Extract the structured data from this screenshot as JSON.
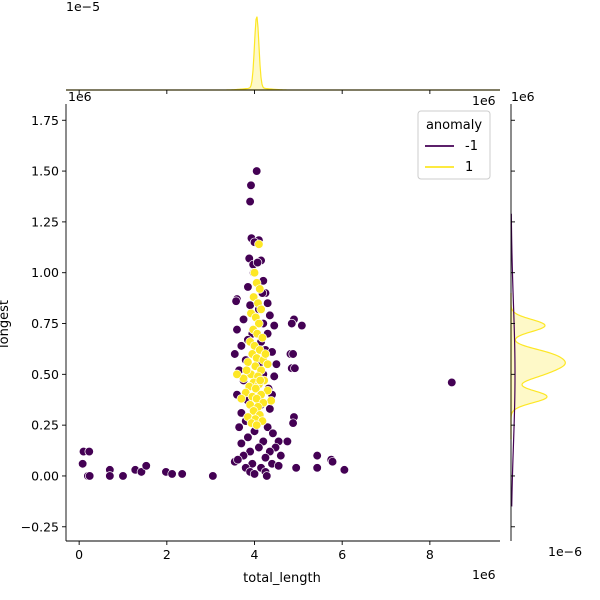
{
  "chart_data": {
    "type": "scatter",
    "joint": {
      "xlabel": "total_length",
      "ylabel": "longest",
      "x_offset_text": "1e6",
      "y_offset_text": "1e6",
      "xlim": [
        -0.3,
        9.6
      ],
      "ylim": [
        -0.32,
        1.83
      ],
      "xticks": [
        0,
        2,
        4,
        6,
        8
      ],
      "xtick_labels": [
        "0",
        "2",
        "4",
        "6",
        "8"
      ],
      "yticks": [
        -0.25,
        0.0,
        0.25,
        0.5,
        0.75,
        1.0,
        1.25,
        1.5,
        1.75
      ],
      "ytick_labels": [
        "−0.25",
        "0.00",
        "0.25",
        "0.50",
        "0.75",
        "1.00",
        "1.25",
        "1.50",
        "1.75"
      ],
      "grid": false
    },
    "legend": {
      "title": "anomaly",
      "placement": "top-right",
      "entries": [
        {
          "label": "-1",
          "color": "#440154"
        },
        {
          "label": "1",
          "color": "#fde725"
        }
      ]
    },
    "top_marginal": {
      "offset_text": "1e−5",
      "peak_x": 4.05
    },
    "right_marginal": {
      "offset_text_top": "1e6",
      "offset_text_bottom": "1e−6"
    },
    "series": [
      {
        "name": "-1",
        "color": "#440154",
        "points": [
          [
            0.1,
            0.12
          ],
          [
            0.23,
            0.12
          ],
          [
            0.08,
            0.06
          ],
          [
            0.2,
            0.0
          ],
          [
            0.24,
            0.0
          ],
          [
            0.7,
            0.03
          ],
          [
            0.7,
            0.0
          ],
          [
            1.0,
            0.0
          ],
          [
            1.28,
            0.03
          ],
          [
            1.42,
            0.02
          ],
          [
            1.53,
            0.05
          ],
          [
            1.98,
            0.02
          ],
          [
            2.12,
            0.01
          ],
          [
            2.35,
            0.01
          ],
          [
            3.05,
            0.0
          ],
          [
            3.55,
            0.07
          ],
          [
            4.05,
            1.5
          ],
          [
            3.92,
            1.43
          ],
          [
            3.9,
            1.35
          ],
          [
            3.93,
            1.17
          ],
          [
            4.1,
            1.16
          ],
          [
            4.0,
            1.15
          ],
          [
            3.88,
            1.07
          ],
          [
            4.15,
            1.06
          ],
          [
            3.97,
            1.04
          ],
          [
            4.07,
            1.05
          ],
          [
            3.98,
            1.0
          ],
          [
            4.2,
            0.96
          ],
          [
            3.85,
            0.93
          ],
          [
            4.25,
            0.9
          ],
          [
            3.6,
            0.87
          ],
          [
            3.58,
            0.86
          ],
          [
            4.3,
            0.85
          ],
          [
            3.9,
            0.84
          ],
          [
            4.1,
            0.82
          ],
          [
            4.35,
            0.79
          ],
          [
            3.75,
            0.77
          ],
          [
            4.2,
            0.75
          ],
          [
            4.45,
            0.74
          ],
          [
            4.9,
            0.77
          ],
          [
            4.85,
            0.75
          ],
          [
            5.08,
            0.74
          ],
          [
            3.6,
            0.72
          ],
          [
            3.95,
            0.7
          ],
          [
            4.3,
            0.7
          ],
          [
            3.85,
            0.67
          ],
          [
            4.15,
            0.66
          ],
          [
            3.7,
            0.64
          ],
          [
            4.25,
            0.62
          ],
          [
            4.4,
            0.61
          ],
          [
            4.82,
            0.6
          ],
          [
            4.88,
            0.6
          ],
          [
            3.55,
            0.6
          ],
          [
            3.8,
            0.57
          ],
          [
            4.5,
            0.55
          ],
          [
            4.1,
            0.55
          ],
          [
            4.85,
            0.53
          ],
          [
            4.92,
            0.53
          ],
          [
            3.65,
            0.52
          ],
          [
            4.2,
            0.5
          ],
          [
            4.45,
            0.49
          ],
          [
            3.75,
            0.47
          ],
          [
            4.05,
            0.45
          ],
          [
            4.32,
            0.43
          ],
          [
            3.6,
            0.4
          ],
          [
            4.4,
            0.4
          ],
          [
            3.85,
            0.37
          ],
          [
            4.15,
            0.35
          ],
          [
            4.35,
            0.33
          ],
          [
            3.7,
            0.31
          ],
          [
            4.1,
            0.29
          ],
          [
            4.9,
            0.29
          ],
          [
            4.88,
            0.26
          ],
          [
            3.8,
            0.27
          ],
          [
            4.3,
            0.24
          ],
          [
            3.65,
            0.24
          ],
          [
            4.0,
            0.22
          ],
          [
            4.42,
            0.21
          ],
          [
            4.55,
            0.17
          ],
          [
            3.85,
            0.19
          ],
          [
            4.2,
            0.17
          ],
          [
            4.75,
            0.17
          ],
          [
            3.7,
            0.16
          ],
          [
            4.1,
            0.14
          ],
          [
            4.48,
            0.14
          ],
          [
            3.9,
            0.12
          ],
          [
            4.35,
            0.12
          ],
          [
            3.75,
            0.1
          ],
          [
            4.25,
            0.09
          ],
          [
            4.6,
            0.1
          ],
          [
            5.43,
            0.1
          ],
          [
            5.75,
            0.08
          ],
          [
            5.78,
            0.07
          ],
          [
            3.62,
            0.08
          ],
          [
            3.95,
            0.06
          ],
          [
            4.4,
            0.06
          ],
          [
            3.8,
            0.04
          ],
          [
            4.15,
            0.04
          ],
          [
            4.55,
            0.05
          ],
          [
            4.95,
            0.04
          ],
          [
            5.43,
            0.04
          ],
          [
            6.05,
            0.03
          ],
          [
            3.9,
            0.02
          ],
          [
            4.25,
            0.02
          ],
          [
            4.0,
            0.01
          ],
          [
            4.28,
            0.0
          ],
          [
            8.5,
            0.46
          ],
          [
            4.05,
            0.58
          ],
          [
            3.98,
            0.32
          ],
          [
            4.18,
            0.9
          ]
        ]
      },
      {
        "name": "1",
        "color": "#fde725",
        "points": [
          [
            4.1,
            1.14
          ],
          [
            4.0,
            1.0
          ],
          [
            4.05,
            0.95
          ],
          [
            4.12,
            0.92
          ],
          [
            3.98,
            0.88
          ],
          [
            4.08,
            0.85
          ],
          [
            4.15,
            0.82
          ],
          [
            3.92,
            0.8
          ],
          [
            4.03,
            0.78
          ],
          [
            4.1,
            0.75
          ],
          [
            3.97,
            0.72
          ],
          [
            4.06,
            0.7
          ],
          [
            4.18,
            0.68
          ],
          [
            3.9,
            0.66
          ],
          [
            4.0,
            0.64
          ],
          [
            4.12,
            0.62
          ],
          [
            3.95,
            0.6
          ],
          [
            4.05,
            0.58
          ],
          [
            4.2,
            0.57
          ],
          [
            3.85,
            0.56
          ],
          [
            4.02,
            0.54
          ],
          [
            4.15,
            0.52
          ],
          [
            3.92,
            0.5
          ],
          [
            4.08,
            0.49
          ],
          [
            3.75,
            0.48
          ],
          [
            4.22,
            0.47
          ],
          [
            3.98,
            0.46
          ],
          [
            4.1,
            0.45
          ],
          [
            3.88,
            0.44
          ],
          [
            4.03,
            0.43
          ],
          [
            4.3,
            0.42
          ],
          [
            3.8,
            0.41
          ],
          [
            4.15,
            0.4
          ],
          [
            3.95,
            0.39
          ],
          [
            4.05,
            0.38
          ],
          [
            4.38,
            0.37
          ],
          [
            3.7,
            0.38
          ],
          [
            4.2,
            0.36
          ],
          [
            3.9,
            0.35
          ],
          [
            4.08,
            0.34
          ],
          [
            3.98,
            0.32
          ],
          [
            4.12,
            0.3
          ],
          [
            3.85,
            0.29
          ],
          [
            4.02,
            0.28
          ],
          [
            4.18,
            0.27
          ],
          [
            3.93,
            0.26
          ],
          [
            4.05,
            0.25
          ],
          [
            3.6,
            0.5
          ],
          [
            4.3,
            0.55
          ],
          [
            4.25,
            0.6
          ],
          [
            3.82,
            0.52
          ],
          [
            4.13,
            0.47
          ]
        ]
      }
    ]
  }
}
